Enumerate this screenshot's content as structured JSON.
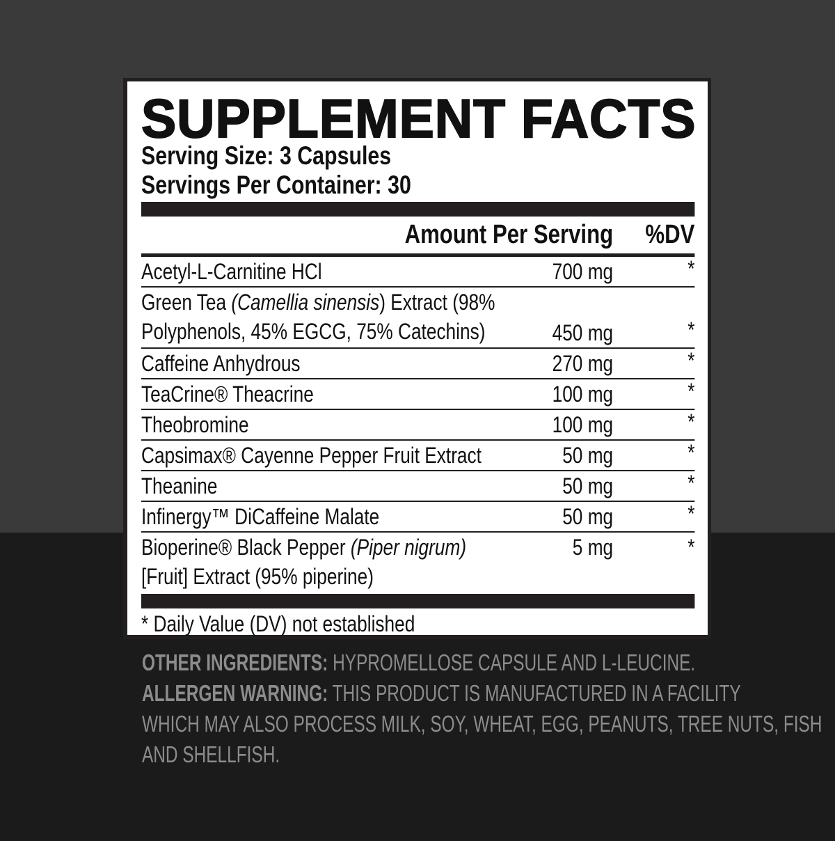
{
  "title": "SUPPLEMENT FACTS",
  "serving_size": "Serving Size: 3 Capsules",
  "servings_per_container": "Servings Per Container: 30",
  "header": {
    "amount": "Amount Per Serving",
    "dv": "%DV"
  },
  "rows": [
    {
      "name": "Acetyl-L-Carnitine HCl",
      "amount": "700 mg",
      "dv": "*"
    },
    {
      "name_a": "Green Tea ",
      "name_italic": "(Camellia sinensis",
      "name_b": ") Extract (98%",
      "name_line2": "Polyphenols, 45% EGCG, 75% Catechins)",
      "amount": "450 mg",
      "dv": "*"
    },
    {
      "name": "Caffeine Anhydrous",
      "amount": "270 mg",
      "dv": "*"
    },
    {
      "name": "TeaCrine® Theacrine",
      "amount": "100 mg",
      "dv": "*"
    },
    {
      "name": "Theobromine",
      "amount": "100 mg",
      "dv": "*"
    },
    {
      "name": "Capsimax® Cayenne Pepper Fruit Extract",
      "amount": "50 mg",
      "dv": "*"
    },
    {
      "name": "Theanine",
      "amount": "50 mg",
      "dv": "*"
    },
    {
      "name": "Infinergy™ DiCaffeine Malate",
      "amount": "50 mg",
      "dv": "*"
    },
    {
      "name_a": "Bioperine® Black Pepper ",
      "name_italic": "(Piper nigrum)",
      "name_line2": "[Fruit] Extract (95% piperine)",
      "amount": "5 mg",
      "dv": "*"
    }
  ],
  "footnote": "* Daily Value (DV) not established",
  "other_ingredients": {
    "label": "OTHER INGREDIENTS:",
    "text": " HYPROMELLOSE CAPSULE AND L-LEUCINE."
  },
  "allergen_warning": {
    "label": "ALLERGEN WARNING:",
    "text": " THIS PRODUCT IS MANUFACTURED IN A FACILITY",
    "line2": "WHICH MAY ALSO PROCESS MILK, SOY, WHEAT, EGG, PEANUTS, TREE NUTS, FISH",
    "line3": "AND SHELLFISH."
  },
  "colors": {
    "background_top": "#3a3a3a",
    "background_bottom": "#1b1b1b",
    "panel_border": "#231f20",
    "secondary_text": "#8c8c8c"
  }
}
